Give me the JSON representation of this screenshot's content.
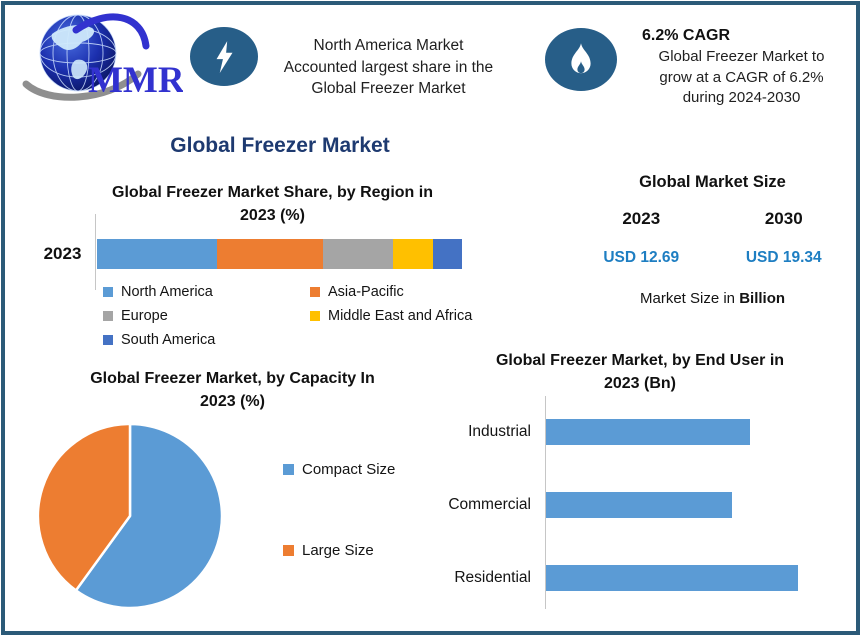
{
  "colors": {
    "frame_border": "#2b5a78",
    "icon_circle": "#275e88",
    "main_title_navy": "#1e3a70",
    "usd_value_blue": "#1e7ec2",
    "logo_blue": "#3232cf"
  },
  "header": {
    "logo": {
      "text": "MMR"
    },
    "highlight": {
      "icon": "lightning-icon",
      "lines": [
        "North America Market",
        "Accounted largest share in the",
        "Global Freezer Market"
      ]
    },
    "cagr": {
      "icon": "flame-icon",
      "heading": "6.2% CAGR",
      "lines": [
        "Global Freezer Market to",
        "grow at a CAGR of 6.2%",
        "during 2024-2030"
      ]
    }
  },
  "main_title": "Global Freezer Market",
  "region_section": {
    "title_lines": [
      "Global Freezer Market Share, by Region in",
      "2023 (%)"
    ],
    "axis_label": "2023"
  },
  "market_size": {
    "title": "Global Market Size",
    "columns": [
      {
        "year": "2023",
        "value": "USD 12.69"
      },
      {
        "year": "2030",
        "value": "USD 19.34"
      }
    ],
    "note_prefix": "Market Size in ",
    "note_bold": "Billion"
  },
  "capacity_section": {
    "title_lines": [
      "Global Freezer Market, by Capacity In",
      "2023 (%)"
    ]
  },
  "enduser_section": {
    "title_lines": [
      "Global Freezer Market, by End User in",
      "2023 (Bn)"
    ]
  },
  "chart_data": [
    {
      "id": "region",
      "type": "bar",
      "stacked": true,
      "orientation": "horizontal",
      "title": "Global Freezer Market Share, by Region in 2023 (%)",
      "categories": [
        "2023"
      ],
      "series": [
        {
          "name": "North America",
          "value": 33,
          "color": "#5B9BD5"
        },
        {
          "name": "Asia-Pacific",
          "value": 29,
          "color": "#ED7D31"
        },
        {
          "name": "Europe",
          "value": 19,
          "color": "#A5A5A5"
        },
        {
          "name": "Middle East and Africa",
          "value": 11,
          "color": "#FFC000"
        },
        {
          "name": "South America",
          "value": 8,
          "color": "#4472C4"
        }
      ],
      "unit": "percent",
      "legend_position": "bottom"
    },
    {
      "id": "capacity",
      "type": "pie",
      "title": "Global Freezer Market, by Capacity In 2023 (%)",
      "slices": [
        {
          "name": "Compact Size",
          "value": 60,
          "color": "#5B9BD5"
        },
        {
          "name": "Large Size",
          "value": 40,
          "color": "#ED7D31"
        }
      ],
      "start_angle_deg": 0,
      "unit": "percent",
      "legend_position": "right"
    },
    {
      "id": "enduser",
      "type": "bar",
      "orientation": "horizontal",
      "title": "Global Freezer Market, by End User in 2023 (Bn)",
      "categories": [
        "Industrial",
        "Commercial",
        "Residential"
      ],
      "values_relative": [
        0.81,
        0.74,
        1.0
      ],
      "bar_color": "#5B9BD5",
      "axis_values_labeled": false,
      "unit": "Bn"
    }
  ]
}
